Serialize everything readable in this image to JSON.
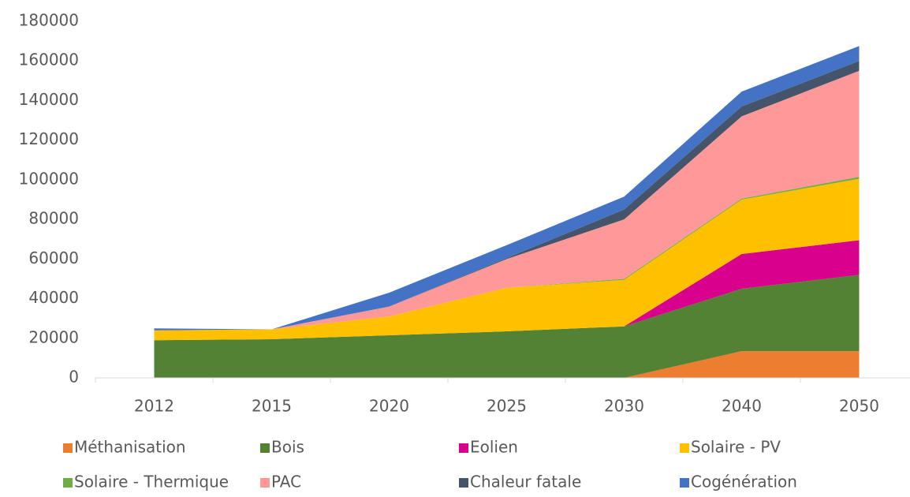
{
  "chart_data": {
    "type": "stacked_area",
    "categories": [
      "2012",
      "2015",
      "2020",
      "2025",
      "2030",
      "2040",
      "2050"
    ],
    "series": [
      {
        "name": "Méthanisation",
        "color": "#ed7d31",
        "values": [
          0,
          0,
          0,
          0,
          0,
          13500,
          13500
        ]
      },
      {
        "name": "Bois",
        "color": "#548235",
        "values": [
          19000,
          19500,
          21500,
          23500,
          26000,
          31500,
          38500
        ]
      },
      {
        "name": "Eolien",
        "color": "#d9008d",
        "values": [
          0,
          0,
          0,
          0,
          0,
          17500,
          17500
        ]
      },
      {
        "name": "Solaire - PV",
        "color": "#ffc000",
        "values": [
          5000,
          5000,
          9500,
          22000,
          23500,
          27500,
          31000
        ]
      },
      {
        "name": "Solaire - Thermique",
        "color": "#70ad47",
        "values": [
          0,
          0,
          0,
          0,
          500,
          500,
          1000
        ]
      },
      {
        "name": "PAC",
        "color": "#ff9999",
        "values": [
          0,
          0,
          5000,
          14500,
          30000,
          41500,
          53500
        ]
      },
      {
        "name": "Chaleur fatale",
        "color": "#44546a",
        "values": [
          0,
          0,
          0,
          500,
          5000,
          5000,
          5000
        ]
      },
      {
        "name": "Cogénération",
        "color": "#4472c4",
        "values": [
          1000,
          0,
          7000,
          6500,
          6500,
          7500,
          7500
        ]
      }
    ],
    "ylim": [
      0,
      180000
    ],
    "yticks": [
      0,
      20000,
      40000,
      60000,
      80000,
      100000,
      120000,
      140000,
      160000,
      180000
    ],
    "legend": "bottom"
  }
}
